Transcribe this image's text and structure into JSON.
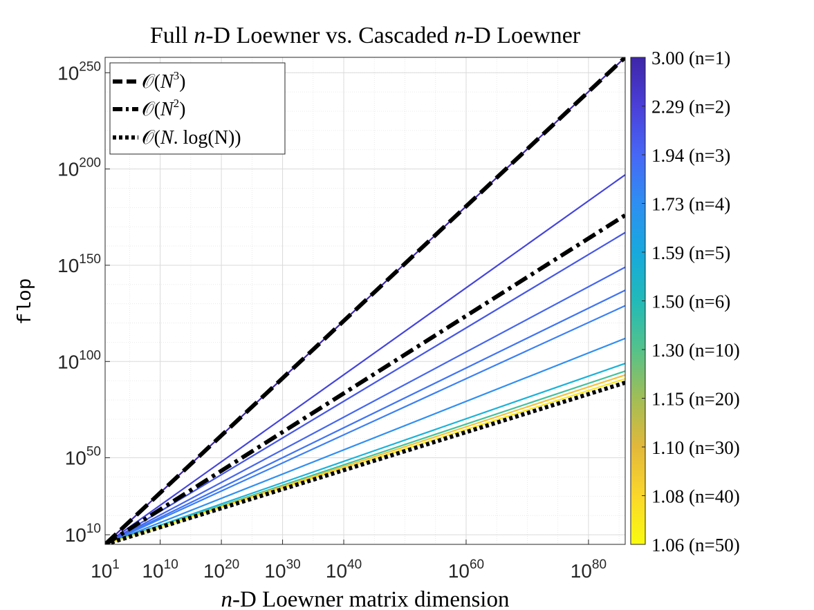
{
  "chart_data": {
    "type": "line",
    "title": "Full n-D Loewner vs. Cascaded n-D Loewner",
    "title_parts": [
      "Full ",
      "n",
      "-D Loewner vs. Cascaded ",
      "n",
      "-D Loewner"
    ],
    "xlabel": "n-D Loewner matrix dimension",
    "xlabel_parts": [
      "n",
      "-D Loewner matrix dimension"
    ],
    "ylabel": "flop",
    "x_scale": "log",
    "y_scale": "log",
    "xlim_exp": [
      1,
      86
    ],
    "ylim_exp": [
      5,
      258
    ],
    "x_ticks": [
      {
        "exp": 1,
        "base": "10",
        "sup": "1"
      },
      {
        "exp": 10,
        "base": "10",
        "sup": "10"
      },
      {
        "exp": 20,
        "base": "10",
        "sup": "20"
      },
      {
        "exp": 30,
        "base": "10",
        "sup": "30"
      },
      {
        "exp": 40,
        "base": "10",
        "sup": "40"
      },
      {
        "exp": 60,
        "base": "10",
        "sup": "60"
      },
      {
        "exp": 80,
        "base": "10",
        "sup": "80"
      }
    ],
    "y_ticks": [
      {
        "exp": 10,
        "base": "10",
        "sup": "10"
      },
      {
        "exp": 50,
        "base": "10",
        "sup": "50"
      },
      {
        "exp": 100,
        "base": "10",
        "sup": "100"
      },
      {
        "exp": 150,
        "base": "10",
        "sup": "150"
      },
      {
        "exp": 200,
        "base": "10",
        "sup": "200"
      },
      {
        "exp": 250,
        "base": "10",
        "sup": "250"
      }
    ],
    "grid": true,
    "legend_position": "top-left",
    "reference_lines": [
      {
        "name": "O(N^3)",
        "slope": 3,
        "dash": "long-dash"
      },
      {
        "name": "O(N^2)",
        "slope": 2,
        "dash": "dash-dot"
      },
      {
        "name": "O(N.log(N))",
        "slope": "N log N",
        "dash": "dotted"
      }
    ],
    "legend": [
      {
        "label": "O(N^3)",
        "prefix": "𝒪(",
        "main": "N",
        "sup": "3",
        "suffix": ")"
      },
      {
        "label": "O(N^2)",
        "prefix": "𝒪(",
        "main": "N",
        "sup": "2",
        "suffix": ")"
      },
      {
        "label": "O(N.log(N))",
        "prefix": "𝒪(",
        "main": "N",
        "sup": "",
        "suffix": ". log(N))"
      }
    ],
    "series": [
      {
        "n": 1,
        "exponent": 3.0,
        "color": "#3e26a8",
        "end_exp": 258
      },
      {
        "n": 2,
        "exponent": 2.29,
        "color": "#4444dd",
        "end_exp": 197
      },
      {
        "n": 3,
        "exponent": 1.94,
        "color": "#4556e6",
        "end_exp": 167
      },
      {
        "n": 4,
        "exponent": 1.73,
        "color": "#4466ee",
        "end_exp": 149
      },
      {
        "n": 5,
        "exponent": 1.59,
        "color": "#3f74f4",
        "end_exp": 137
      },
      {
        "n": 6,
        "exponent": 1.5,
        "color": "#3a80f5",
        "end_exp": 129
      },
      {
        "n": 10,
        "exponent": 1.3,
        "color": "#2f8ff2",
        "end_exp": 112
      },
      {
        "n": 20,
        "exponent": 1.15,
        "color": "#1ab2d9",
        "end_exp": 99
      },
      {
        "n": 30,
        "exponent": 1.1,
        "color": "#40c29a",
        "end_exp": 95
      },
      {
        "n": 40,
        "exponent": 1.08,
        "color": "#f7c036",
        "end_exp": 93
      },
      {
        "n": 50,
        "exponent": 1.06,
        "color": "#f9e81f",
        "end_exp": 91
      }
    ],
    "colorbar": {
      "stops": [
        "#3e26a8",
        "#4a3fd8",
        "#4767f6",
        "#2e8ff2",
        "#17a9dd",
        "#22bab8",
        "#54c28a",
        "#a1be56",
        "#e2b83a",
        "#fbd72b",
        "#f9fb0e"
      ],
      "labels": [
        {
          "value": "3.00",
          "n": "(n=1)"
        },
        {
          "value": "2.29",
          "n": "(n=2)"
        },
        {
          "value": "1.94",
          "n": "(n=3)"
        },
        {
          "value": "1.73",
          "n": "(n=4)"
        },
        {
          "value": "1.59",
          "n": "(n=5)"
        },
        {
          "value": "1.50",
          "n": "(n=6)"
        },
        {
          "value": "1.30",
          "n": "(n=10)"
        },
        {
          "value": "1.15",
          "n": "(n=20)"
        },
        {
          "value": "1.10",
          "n": "(n=30)"
        },
        {
          "value": "1.08",
          "n": "(n=40)"
        },
        {
          "value": "1.06",
          "n": "(n=50)"
        }
      ]
    }
  }
}
